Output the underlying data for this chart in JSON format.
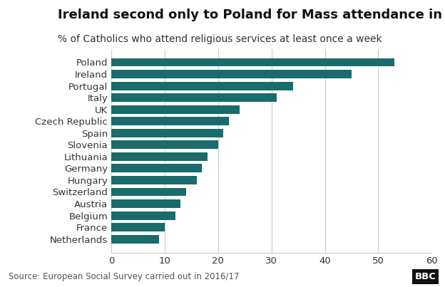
{
  "title": "Ireland second only to Poland for Mass attendance in Europe",
  "subtitle": "% of Catholics who attend religious services at least once a week",
  "source": "Source: European Social Survey carried out in 2016/17",
  "categories": [
    "Netherlands",
    "France",
    "Belgium",
    "Austria",
    "Switzerland",
    "Hungary",
    "Germany",
    "Lithuania",
    "Slovenia",
    "Spain",
    "Czech Republic",
    "UK",
    "Italy",
    "Portugal",
    "Ireland",
    "Poland"
  ],
  "values": [
    9,
    10,
    12,
    13,
    14,
    16,
    17,
    18,
    20,
    21,
    22,
    24,
    31,
    34,
    45,
    53
  ],
  "bar_color": "#1a6b6b",
  "xlim": [
    0,
    60
  ],
  "xticks": [
    0,
    10,
    20,
    30,
    40,
    50,
    60
  ],
  "background_color": "#ffffff",
  "title_fontsize": 13,
  "subtitle_fontsize": 10,
  "tick_label_fontsize": 9.5,
  "source_fontsize": 8.5,
  "bbc_label": "BBC",
  "bbc_text_color": "white",
  "bbc_bg_color": "#111111"
}
